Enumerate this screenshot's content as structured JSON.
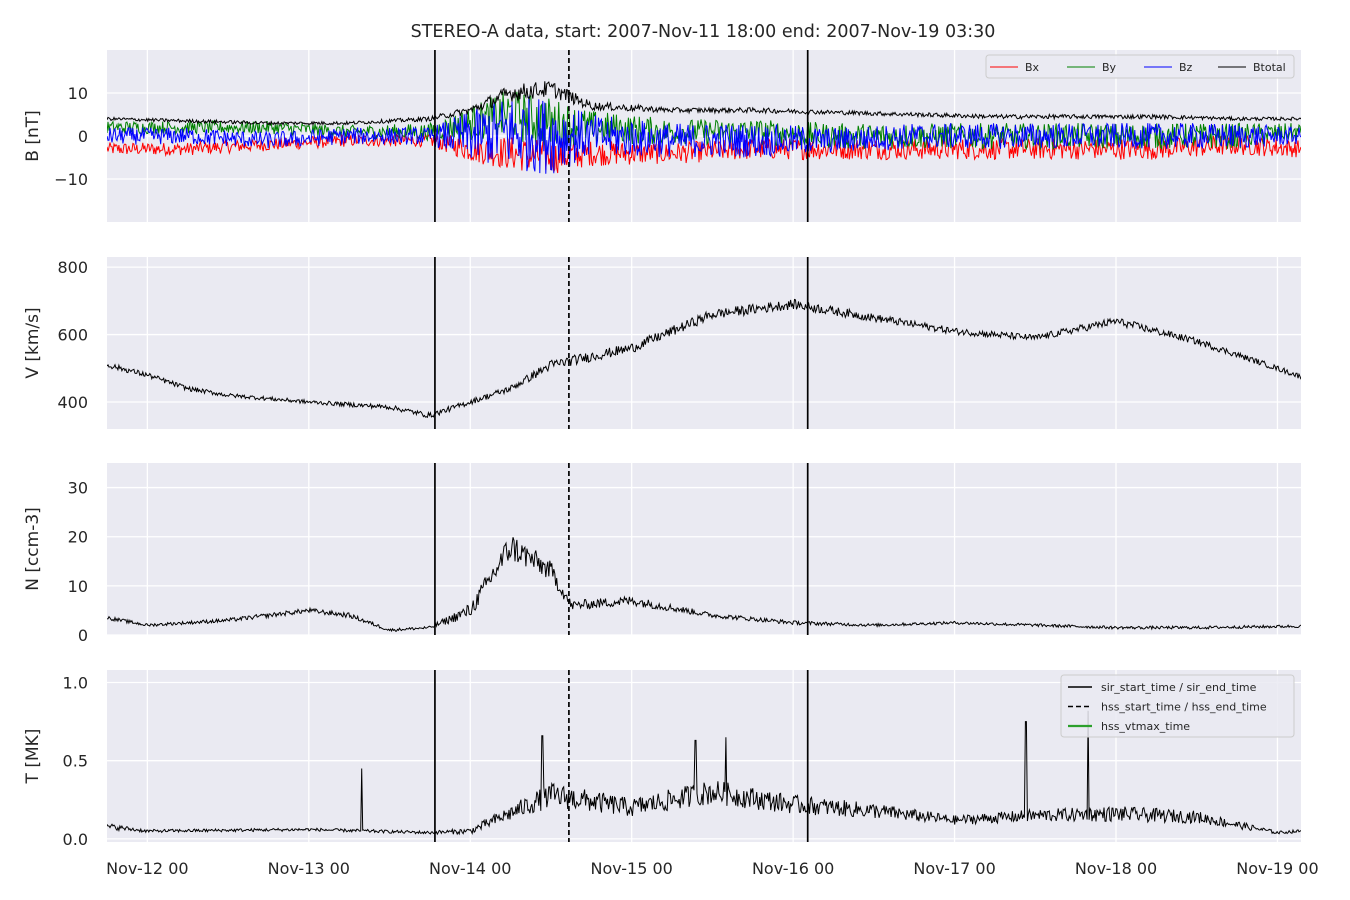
{
  "title": "STEREO-A data, start: 2007-Nov-11 18:00  end: 2007-Nov-19 03:30",
  "x_tick_labels": [
    "Nov-12 00",
    "Nov-13 00",
    "Nov-14 00",
    "Nov-15 00",
    "Nov-16 00",
    "Nov-17 00",
    "Nov-18 00",
    "Nov-19 00"
  ],
  "colors": {
    "bx": "#ff0000",
    "by": "#008000",
    "bz": "#0000ff",
    "btotal": "#000000",
    "vtmax": "#2ca02c",
    "panel_bg": "#eaeaf2",
    "grid": "#ffffff"
  },
  "chart_data": {
    "type": "line",
    "time_range": [
      "2007-11-11 18:00",
      "2007-11-19 03:30"
    ],
    "x_ticks": [
      "2007-11-12 00:00",
      "2007-11-13 00:00",
      "2007-11-14 00:00",
      "2007-11-15 00:00",
      "2007-11-16 00:00",
      "2007-11-17 00:00",
      "2007-11-18 00:00",
      "2007-11-19 00:00"
    ],
    "grid": true,
    "event_markers": [
      {
        "name": "sir_start_time",
        "time": "2007-11-13 18:45",
        "style": "solid"
      },
      {
        "name": "hss_start_time",
        "time": "2007-11-14 14:40",
        "style": "dashed"
      },
      {
        "name": "sir_end_time",
        "time": "2007-11-16 02:10",
        "style": "solid"
      }
    ],
    "panels": [
      {
        "id": "B",
        "ylabel": "B [nT]",
        "ylim": [
          -20,
          20
        ],
        "yticks": [
          -10,
          0,
          10
        ],
        "legend": {
          "placement": "top-right",
          "entries": [
            "Bx",
            "By",
            "Bz",
            "Btotal"
          ]
        },
        "x": [
          "2007-11-11 18:00",
          "2007-11-12 06:00",
          "2007-11-12 18:00",
          "2007-11-13 06:00",
          "2007-11-13 18:00",
          "2007-11-14 00:00",
          "2007-11-14 06:00",
          "2007-11-14 12:00",
          "2007-11-14 18:00",
          "2007-11-15 06:00",
          "2007-11-15 18:00",
          "2007-11-16 06:00",
          "2007-11-16 18:00",
          "2007-11-17 06:00",
          "2007-11-17 18:00",
          "2007-11-18 06:00",
          "2007-11-18 18:00",
          "2007-11-19 03:30"
        ],
        "series": [
          {
            "name": "Bx",
            "color": "#ff0000",
            "values": [
              -3,
              -3,
              -2,
              -1,
              -1,
              -3,
              -4,
              -5,
              -4,
              -4,
              -3,
              -3,
              -3,
              -3,
              -3,
              -3,
              -2,
              -3
            ],
            "noise": [
              1.5,
              1.5,
              1.5,
              1.5,
              1.5,
              3,
              4,
              4,
              3,
              2.5,
              2.5,
              2.5,
              2.5,
              2.5,
              2.5,
              2.5,
              2.5,
              2
            ]
          },
          {
            "name": "By",
            "color": "#008000",
            "values": [
              2,
              2,
              2,
              1,
              1,
              3,
              5,
              3,
              2,
              1,
              1,
              0,
              0,
              0,
              0,
              0,
              0,
              1
            ],
            "noise": [
              1.5,
              1.5,
              1.5,
              1.5,
              2,
              4,
              6,
              6,
              4,
              3,
              3,
              3,
              3,
              3,
              3,
              3,
              3,
              2
            ]
          },
          {
            "name": "Bz",
            "color": "#0000ff",
            "values": [
              0,
              0,
              -1,
              0,
              0,
              0,
              1,
              0,
              0,
              -1,
              -1,
              -1,
              0,
              0,
              0,
              0,
              0,
              0
            ],
            "noise": [
              2,
              2,
              2,
              2,
              2,
              6,
              9,
              9,
              5,
              4,
              4,
              3,
              3,
              3,
              3,
              3,
              3,
              2
            ]
          },
          {
            "name": "Btotal",
            "color": "#000000",
            "values": [
              4,
              3.5,
              3,
              3,
              4,
              6,
              10,
              11,
              7,
              6,
              6,
              5.5,
              5,
              4.5,
              4.5,
              4.5,
              4,
              4
            ],
            "noise": [
              0.4,
              0.4,
              0.4,
              0.4,
              0.5,
              1,
              2,
              2,
              1,
              0.6,
              0.6,
              0.5,
              0.5,
              0.5,
              0.5,
              0.5,
              0.4,
              0.4
            ]
          }
        ]
      },
      {
        "id": "V",
        "ylabel": "V [km/s]",
        "ylim": [
          320,
          830
        ],
        "yticks": [
          400,
          600,
          800
        ],
        "x": [
          "2007-11-11 18:00",
          "2007-11-12 00:00",
          "2007-11-12 06:00",
          "2007-11-12 12:00",
          "2007-11-13 00:00",
          "2007-11-13 12:00",
          "2007-11-13 18:00",
          "2007-11-14 00:00",
          "2007-11-14 06:00",
          "2007-11-14 12:00",
          "2007-11-15 00:00",
          "2007-11-15 12:00",
          "2007-11-16 00:00",
          "2007-11-16 12:00",
          "2007-11-17 00:00",
          "2007-11-17 12:00",
          "2007-11-18 00:00",
          "2007-11-18 12:00",
          "2007-11-19 00:00",
          "2007-11-19 03:30"
        ],
        "series": [
          {
            "name": "V",
            "color": "#000000",
            "values": [
              510,
              480,
              440,
              420,
              400,
              385,
              360,
              400,
              440,
              510,
              560,
              660,
              690,
              650,
              610,
              590,
              640,
              580,
              500,
              475
            ],
            "noise": [
              8,
              8,
              7,
              6,
              6,
              7,
              8,
              8,
              10,
              15,
              15,
              15,
              15,
              12,
              10,
              10,
              12,
              10,
              8,
              8
            ]
          }
        ]
      },
      {
        "id": "N",
        "ylabel": "N [ccm-3]",
        "ylim": [
          0,
          35
        ],
        "yticks": [
          0,
          10,
          20,
          30
        ],
        "x": [
          "2007-11-11 18:00",
          "2007-11-12 00:00",
          "2007-11-12 12:00",
          "2007-11-13 00:00",
          "2007-11-13 06:00",
          "2007-11-13 12:00",
          "2007-11-13 18:00",
          "2007-11-14 00:00",
          "2007-11-14 06:00",
          "2007-11-14 12:00",
          "2007-11-14 15:00",
          "2007-11-15 00:00",
          "2007-11-15 12:00",
          "2007-11-16 00:00",
          "2007-11-16 12:00",
          "2007-11-17 00:00",
          "2007-11-17 12:00",
          "2007-11-18 00:00",
          "2007-11-18 12:00",
          "2007-11-19 03:30"
        ],
        "series": [
          {
            "name": "N",
            "color": "#000000",
            "values": [
              3.5,
              2,
              3,
              5,
              4,
              1,
              1.5,
              5,
              18,
              13,
              6,
              7,
              4,
              2.5,
              2,
              2.5,
              2,
              1.5,
              1.5,
              1.8
            ],
            "noise": [
              0.4,
              0.3,
              0.4,
              0.5,
              0.5,
              0.3,
              0.3,
              1.5,
              3,
              2,
              1,
              1,
              0.5,
              0.4,
              0.3,
              0.3,
              0.3,
              0.3,
              0.3,
              0.3
            ]
          }
        ]
      },
      {
        "id": "T",
        "ylabel": "T [MK]",
        "ylim": [
          -0.02,
          1.08
        ],
        "yticks": [
          0.0,
          0.5,
          1.0
        ],
        "legend": {
          "placement": "top-right",
          "entries": [
            "sir_start_time / sir_end_time",
            "hss_start_time / hss_end_time",
            "hss_vtmax_time"
          ]
        },
        "x": [
          "2007-11-11 18:00",
          "2007-11-12 00:00",
          "2007-11-13 00:00",
          "2007-11-13 18:00",
          "2007-11-14 00:00",
          "2007-11-14 12:00",
          "2007-11-15 00:00",
          "2007-11-15 12:00",
          "2007-11-16 00:00",
          "2007-11-16 12:00",
          "2007-11-17 00:00",
          "2007-11-17 12:00",
          "2007-11-18 00:00",
          "2007-11-18 12:00",
          "2007-11-19 00:00",
          "2007-11-19 03:30"
        ],
        "series": [
          {
            "name": "T",
            "color": "#000000",
            "values": [
              0.08,
              0.05,
              0.06,
              0.04,
              0.05,
              0.28,
              0.2,
              0.3,
              0.22,
              0.18,
              0.12,
              0.15,
              0.16,
              0.14,
              0.04,
              0.05
            ],
            "noise": [
              0.02,
              0.01,
              0.01,
              0.01,
              0.02,
              0.08,
              0.06,
              0.08,
              0.06,
              0.05,
              0.03,
              0.04,
              0.05,
              0.04,
              0.01,
              0.01
            ]
          }
        ],
        "spikes": [
          {
            "time": "2007-11-13 07:50",
            "value": 0.45
          },
          {
            "time": "2007-11-14 10:45",
            "value": 0.66
          },
          {
            "time": "2007-11-15 09:30",
            "value": 0.63
          },
          {
            "time": "2007-11-15 14:00",
            "value": 0.65
          },
          {
            "time": "2007-11-17 10:35",
            "value": 0.75
          },
          {
            "time": "2007-11-17 19:50",
            "value": 0.82
          }
        ]
      }
    ]
  }
}
